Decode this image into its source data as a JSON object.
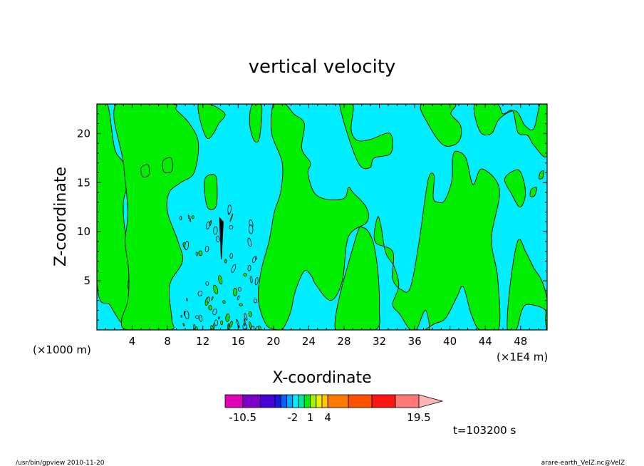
{
  "chart_data": {
    "type": "heatmap",
    "title": "vertical velocity",
    "xlabel": "X-coordinate",
    "ylabel": "Z-coordinate",
    "x_unit_left": "(×1000 m)",
    "x_unit_right": "(×1E4 m)",
    "x_ticks": [
      4,
      8,
      12,
      16,
      20,
      24,
      28,
      32,
      36,
      40,
      44,
      48
    ],
    "y_ticks": [
      5,
      10,
      15,
      20
    ],
    "xlim": [
      0,
      51
    ],
    "ylim": [
      0,
      23
    ],
    "time_label": "t=103200 s",
    "colors": {
      "negative_weak": "#00eeff",
      "positive_weak": "#00ee00",
      "contour_line": "#000000"
    },
    "positive_regions": [
      {
        "x": [
          0,
          1.2,
          2,
          3,
          3.5,
          3,
          3.2,
          4,
          3.5,
          4.2,
          4.5,
          5.2,
          4.6,
          3.0,
          1.5,
          0
        ],
        "z": [
          23,
          23,
          18.5,
          17,
          15,
          13,
          10,
          7,
          4.5,
          3,
          1,
          0,
          0,
          0.5,
          2.5,
          5
        ]
      },
      {
        "x": [
          2.2,
          8.5,
          9,
          10.5,
          11.5,
          11,
          9.5,
          8.2,
          8,
          9.2,
          9.7,
          8.4,
          8.2,
          8.5,
          8.3,
          3.5,
          2.8,
          3.5,
          3.6,
          3.2,
          3.5,
          3.0
        ],
        "z": [
          23,
          23,
          22.4,
          21,
          19,
          16,
          15,
          14,
          12,
          9,
          7,
          5,
          3.5,
          1,
          0,
          0,
          1,
          3,
          6,
          9,
          12,
          17
        ]
      },
      {
        "x": [
          11.5,
          12.8,
          14.5,
          13.8,
          13.2,
          12.5,
          11.8
        ],
        "z": [
          23,
          23,
          22,
          21,
          20,
          19.5,
          21
        ]
      },
      {
        "x": [
          12.3,
          13.3,
          13.6,
          13.5,
          12.6,
          12.2
        ],
        "z": [
          15.5,
          15.8,
          15,
          12.6,
          12.4,
          14
        ]
      },
      {
        "x": [
          17.5,
          18.3,
          18.7,
          18.4,
          17.8,
          17.3
        ],
        "z": [
          22.8,
          23,
          22.5,
          19.5,
          19.3,
          21
        ]
      },
      {
        "x": [
          20,
          21.3,
          22.3,
          23.5,
          23.2,
          24.2,
          23.9,
          24.6,
          26,
          28,
          28.5,
          29,
          30.5,
          30.6,
          28.5,
          27.8,
          26.5,
          24.8,
          24.3,
          23.5,
          22.5,
          22,
          21.6,
          21,
          20.8,
          20.5,
          19.2,
          18.3,
          18.6,
          19.5,
          20.1,
          20.8,
          21,
          19.8
        ],
        "z": [
          23,
          23,
          22,
          21,
          18.5,
          17,
          16,
          14,
          13.3,
          13.4,
          14.5,
          14,
          12.5,
          11,
          9.5,
          5,
          3,
          4.6,
          5.5,
          6,
          4,
          2,
          1,
          0,
          0,
          0,
          0.5,
          3,
          6,
          9,
          12,
          14,
          17,
          20
        ]
      },
      {
        "x": [
          27.5,
          29,
          28.8,
          29.5,
          31,
          33.2,
          33.3,
          31.4,
          30.9,
          29.5
        ],
        "z": [
          23,
          23,
          20.4,
          19.3,
          19.4,
          20,
          18,
          17.5,
          16.5,
          17.2
        ]
      },
      {
        "x": [
          27,
          31.5,
          32,
          31.8,
          31.2,
          30.2,
          29.3
        ],
        "z": [
          0,
          0,
          2.2,
          6.2,
          9.2,
          10.4,
          9.3
        ]
      },
      {
        "x": [
          31.5,
          33.5,
          33.5,
          34.5,
          35.5,
          36.5,
          37.5,
          38.2,
          38.1,
          38.6,
          39.4,
          40.2,
          40.3,
          40.7,
          41.8,
          42.6,
          43.6,
          45.6,
          44.7,
          45.4,
          45.5,
          43.4,
          42.4,
          41.5,
          40.8,
          39.5,
          38.2,
          37.2,
          37.7,
          37.2,
          36.2,
          35.5,
          34.3,
          33.5,
          34.2,
          33.7,
          32.7,
          32.2,
          31.8
        ],
        "z": [
          9,
          8,
          5.2,
          4.1,
          4.3,
          9,
          15.2,
          15.7,
          13.5,
          13,
          13.2,
          15.2,
          17.5,
          18.2,
          17.5,
          14.8,
          16.4,
          14.3,
          9.3,
          5.3,
          0,
          0,
          1.6,
          4.4,
          3.4,
          1.2,
          0.6,
          0,
          0,
          2,
          0,
          0,
          1.6,
          2.6,
          4.5,
          6.4,
          7.9,
          10.5,
          11.5
        ]
      },
      {
        "x": [
          36.8,
          40.5,
          40.1,
          41.2,
          41,
          39.3,
          37.5
        ],
        "z": [
          23,
          23,
          22,
          20.8,
          19.2,
          18.8,
          21
        ]
      },
      {
        "x": [
          42.8,
          45.3,
          46,
          47.1,
          47.7,
          48.8,
          49.5,
          51,
          51,
          50.2,
          49.5,
          48.5,
          47.4,
          45.6,
          44.7,
          43.4
        ],
        "z": [
          23,
          23,
          22,
          22.3,
          20.1,
          19.8,
          18.8,
          17.8,
          23,
          23,
          20.5,
          20.8,
          22.3,
          21.5,
          20,
          20.2
        ]
      },
      {
        "x": [
          46.2,
          47.7,
          48.4,
          48.5,
          47.9,
          47
        ],
        "z": [
          15.4,
          16.3,
          15,
          13.5,
          12.5,
          13.8
        ]
      },
      {
        "x": [
          46.5,
          47.5,
          48.1,
          48.8,
          50.7,
          50.8,
          51,
          51,
          50.4,
          49.5,
          48.6,
          47.7,
          46.8
        ],
        "z": [
          0,
          0,
          1.9,
          2.6,
          2.1,
          1,
          0,
          3,
          5,
          6.3,
          7.9,
          9.1,
          4.5
        ]
      },
      {
        "x": [
          5,
          5.8,
          5.9,
          5.2
        ],
        "z": [
          16.5,
          16.8,
          15.8,
          15.6
        ]
      },
      {
        "x": [
          7.5,
          8.4,
          8.5,
          7.6
        ],
        "z": [
          17.2,
          17.5,
          16.2,
          16.1
        ]
      },
      {
        "x": [
          49.2,
          49.8,
          49.6,
          49.1
        ],
        "z": [
          14.3,
          14.5,
          13.7,
          13.6
        ]
      },
      {
        "x": [
          50.2,
          50.6,
          50.5,
          50.1
        ],
        "z": [
          16,
          16.2,
          15.5,
          15.4
        ]
      }
    ],
    "noise_region": {
      "x_range": [
        9.5,
        18.5
      ],
      "z_range": [
        0,
        13
      ]
    },
    "color_bar": {
      "labels": [
        "-10.5",
        "-2",
        "1",
        "4",
        "19.5"
      ],
      "label_values": [
        -10.5,
        -2,
        1,
        4,
        19.5
      ],
      "segments": [
        {
          "lo": -13.5,
          "hi": -10.5,
          "color": "#e000b8"
        },
        {
          "lo": -10.5,
          "hi": -7.5,
          "color": "#7a00c8"
        },
        {
          "lo": -7.5,
          "hi": -5,
          "color": "#4800d8"
        },
        {
          "lo": -5,
          "hi": -4,
          "color": "#1818e0"
        },
        {
          "lo": -4,
          "hi": -3,
          "color": "#0064ff"
        },
        {
          "lo": -3,
          "hi": -2,
          "color": "#00a8ff"
        },
        {
          "lo": -2,
          "hi": -1,
          "color": "#00eeff"
        },
        {
          "lo": -1,
          "hi": 0,
          "color": "#00e8a0"
        },
        {
          "lo": 0,
          "hi": 1,
          "color": "#00ee00"
        },
        {
          "lo": 1,
          "hi": 2,
          "color": "#aaee00"
        },
        {
          "lo": 2,
          "hi": 3,
          "color": "#eeee00"
        },
        {
          "lo": 3,
          "hi": 4,
          "color": "#ffc800"
        },
        {
          "lo": 4,
          "hi": 7.5,
          "color": "#ff7800"
        },
        {
          "lo": 7.5,
          "hi": 11.5,
          "color": "#ff5000"
        },
        {
          "lo": 11.5,
          "hi": 15.5,
          "color": "#ff1414"
        },
        {
          "lo": 15.5,
          "hi": 19.5,
          "color": "#ff7878"
        }
      ],
      "overflow_color": "#ffb4b4",
      "overflow_length": 4
    }
  },
  "footer": {
    "left": "/usr/bin/gpview   2010-11-20",
    "right": "arare-earth_VelZ.nc@VelZ"
  }
}
